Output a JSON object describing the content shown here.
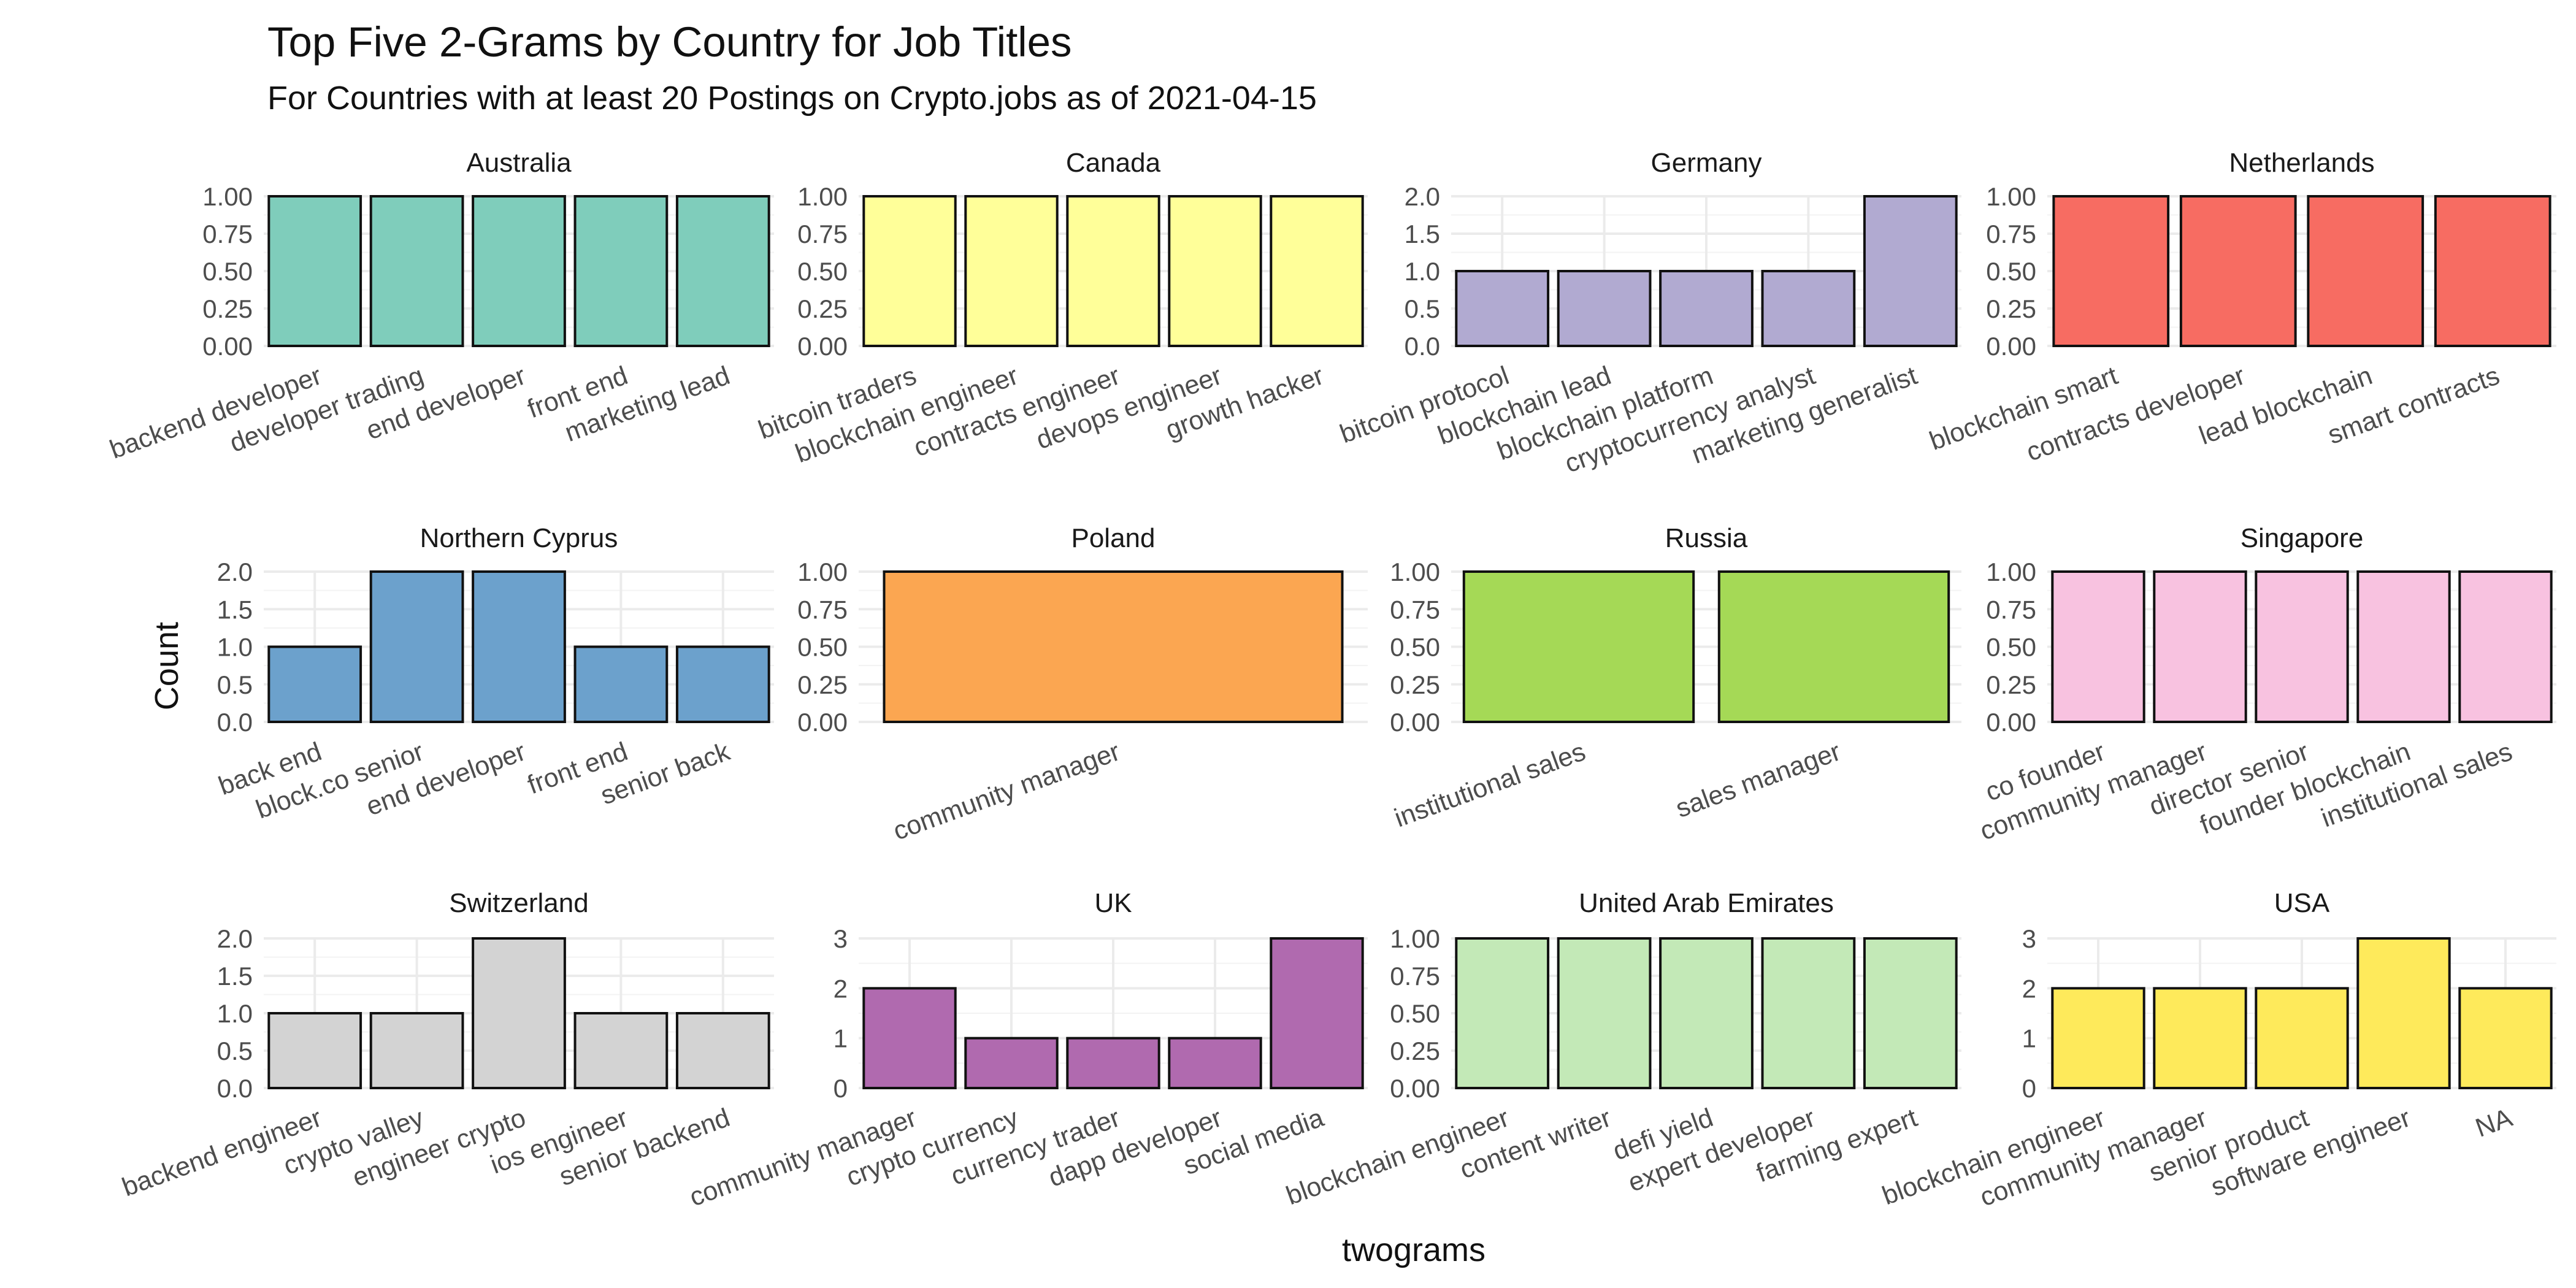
{
  "chart": {
    "title": "Top Five 2-Grams by Country for Job Titles",
    "subtitle": "For Countries with at least 20 Postings on Crypto.jobs as of 2021-04-15",
    "xlabel": "twograms",
    "ylabel": "Count"
  },
  "chart_data": [
    {
      "type": "bar",
      "title": "Australia",
      "color": "#7fcdbb",
      "categories": [
        "backend developer",
        "developer trading",
        "end developer",
        "front end",
        "marketing lead"
      ],
      "values": [
        1,
        1,
        1,
        1,
        1
      ],
      "ylim": [
        0,
        1
      ],
      "yticks": [
        "0.00",
        "0.25",
        "0.50",
        "0.75",
        "1.00"
      ]
    },
    {
      "type": "bar",
      "title": "Canada",
      "color": "#ffff99",
      "categories": [
        "bitcoin traders",
        "blockchain engineer",
        "contracts engineer",
        "devops engineer",
        "growth hacker"
      ],
      "values": [
        1,
        1,
        1,
        1,
        1
      ],
      "ylim": [
        0,
        1
      ],
      "yticks": [
        "0.00",
        "0.25",
        "0.50",
        "0.75",
        "1.00"
      ]
    },
    {
      "type": "bar",
      "title": "Germany",
      "color": "#b1aad1",
      "categories": [
        "bitcoin protocol",
        "blockchain lead",
        "blockchain platform",
        "cryptocurrency analyst",
        "marketing generalist"
      ],
      "values": [
        1,
        1,
        1,
        1,
        2
      ],
      "ylim": [
        0,
        2
      ],
      "yticks": [
        "0.0",
        "0.5",
        "1.0",
        "1.5",
        "2.0"
      ]
    },
    {
      "type": "bar",
      "title": "Netherlands",
      "color": "#f76c62",
      "categories": [
        "blockchain smart",
        "contracts developer",
        "lead blockchain",
        "smart contracts"
      ],
      "values": [
        1,
        1,
        1,
        1
      ],
      "ylim": [
        0,
        1
      ],
      "yticks": [
        "0.00",
        "0.25",
        "0.50",
        "0.75",
        "1.00"
      ]
    },
    {
      "type": "bar",
      "title": "Northern Cyprus",
      "color": "#6ca1cc",
      "categories": [
        "back end",
        "block.co senior",
        "end developer",
        "front end",
        "senior back"
      ],
      "values": [
        1,
        2,
        2,
        1,
        1
      ],
      "ylim": [
        0,
        2
      ],
      "yticks": [
        "0.0",
        "0.5",
        "1.0",
        "1.5",
        "2.0"
      ]
    },
    {
      "type": "bar",
      "title": "Poland",
      "color": "#fba651",
      "categories": [
        "community manager"
      ],
      "values": [
        1
      ],
      "ylim": [
        0,
        1
      ],
      "yticks": [
        "0.00",
        "0.25",
        "0.50",
        "0.75",
        "1.00"
      ]
    },
    {
      "type": "bar",
      "title": "Russia",
      "color": "#a5d956",
      "categories": [
        "institutional sales",
        "sales manager"
      ],
      "values": [
        1,
        1
      ],
      "ylim": [
        0,
        1
      ],
      "yticks": [
        "0.00",
        "0.25",
        "0.50",
        "0.75",
        "1.00"
      ]
    },
    {
      "type": "bar",
      "title": "Singapore",
      "color": "#f8c2e0",
      "categories": [
        "co founder",
        "community manager",
        "director senior",
        "founder blockchain",
        "institutional sales"
      ],
      "values": [
        1,
        1,
        1,
        1,
        1
      ],
      "ylim": [
        0,
        1
      ],
      "yticks": [
        "0.00",
        "0.25",
        "0.50",
        "0.75",
        "1.00"
      ]
    },
    {
      "type": "bar",
      "title": "Switzerland",
      "color": "#d3d3d3",
      "categories": [
        "backend engineer",
        "crypto valley",
        "engineer crypto",
        "ios engineer",
        "senior backend"
      ],
      "values": [
        1,
        1,
        2,
        1,
        1
      ],
      "ylim": [
        0,
        2
      ],
      "yticks": [
        "0.0",
        "0.5",
        "1.0",
        "1.5",
        "2.0"
      ]
    },
    {
      "type": "bar",
      "title": "UK",
      "color": "#b06aaf",
      "categories": [
        "community manager",
        "crypto currency",
        "currency trader",
        "dapp developer",
        "social media"
      ],
      "values": [
        2,
        1,
        1,
        1,
        3
      ],
      "ylim": [
        0,
        3
      ],
      "yticks": [
        "0",
        "1",
        "2",
        "3"
      ]
    },
    {
      "type": "bar",
      "title": "United Arab Emirates",
      "color": "#c3e9b7",
      "categories": [
        "blockchain engineer",
        "content writer",
        "defi yield",
        "expert developer",
        "farming expert"
      ],
      "values": [
        1,
        1,
        1,
        1,
        1
      ],
      "ylim": [
        0,
        1
      ],
      "yticks": [
        "0.00",
        "0.25",
        "0.50",
        "0.75",
        "1.00"
      ]
    },
    {
      "type": "bar",
      "title": "USA",
      "color": "#feea5b",
      "categories": [
        "blockchain engineer",
        "community manager",
        "senior product",
        "software engineer",
        "NA"
      ],
      "values": [
        2,
        2,
        2,
        3,
        2
      ],
      "ylim": [
        0,
        3
      ],
      "yticks": [
        "0",
        "1",
        "2",
        "3"
      ]
    }
  ]
}
